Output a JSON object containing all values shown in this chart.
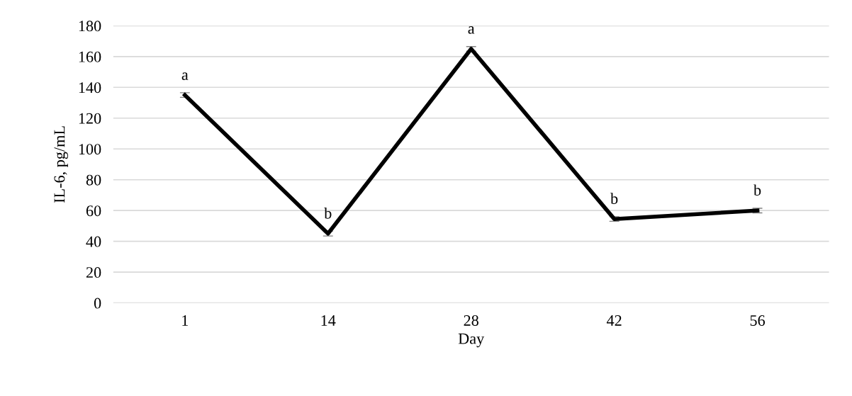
{
  "chart_data": {
    "type": "line",
    "xlabel": "Day",
    "ylabel": "IL-6, pg/mL",
    "categories": [
      "1",
      "14",
      "28",
      "42",
      "56"
    ],
    "series": [
      {
        "color": "#000000",
        "values": [
          135,
          45,
          165,
          54.5,
          60
        ],
        "errors": [
          1.5,
          1.5,
          1.5,
          1.5,
          1.5
        ]
      }
    ],
    "ylim": [
      0,
      180
    ],
    "yticks": [
      0,
      20,
      40,
      60,
      80,
      100,
      120,
      140,
      160,
      180
    ],
    "grid": "y",
    "marker": "none",
    "line_style": "solid",
    "annotations": [
      {
        "text": "a",
        "x": "1",
        "y": 135
      },
      {
        "text": "b",
        "x": "14",
        "y": 45
      },
      {
        "text": "a",
        "x": "28",
        "y": 165
      },
      {
        "text": "b",
        "x": "42",
        "y": 54.5
      },
      {
        "text": "b",
        "x": "56",
        "y": 60
      }
    ]
  }
}
